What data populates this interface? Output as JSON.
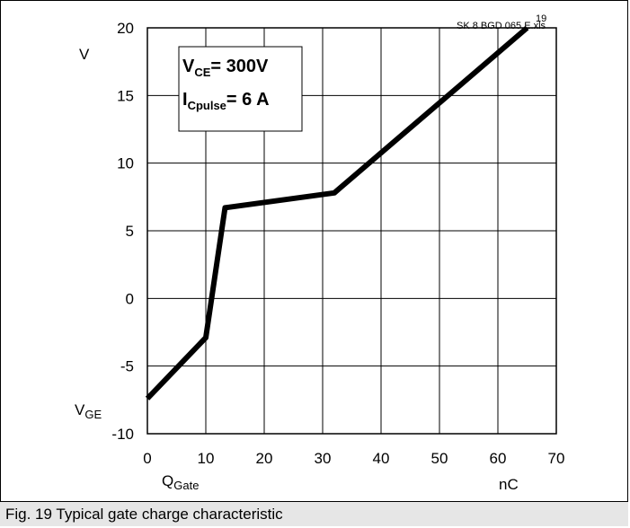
{
  "chart_data": {
    "type": "line",
    "x_min": 0,
    "x_max": 70,
    "y_min": -10,
    "y_max": 20,
    "x_ticks": [
      0,
      10,
      20,
      30,
      40,
      50,
      60,
      70
    ],
    "y_ticks": [
      -10,
      -5,
      0,
      5,
      10,
      15,
      20
    ],
    "x_tick_labels": [
      "0",
      "10",
      "20",
      "30",
      "40",
      "50",
      "60",
      "70"
    ],
    "y_tick_labels": [
      "-10",
      "-5",
      "0",
      "5",
      "10",
      "15",
      "20"
    ],
    "grid": true,
    "x_label": {
      "main": "Q",
      "sub": "Gate"
    },
    "x_unit": "nC",
    "y_label": {
      "main": "V",
      "sub": "GE"
    },
    "y_unit": "V",
    "series": [
      {
        "x": [
          0,
          10,
          13.3,
          32,
          65
        ],
        "y": [
          -7.4,
          -2.9,
          6.7,
          7.8,
          20
        ]
      }
    ],
    "annotation_file": "SK 8 BGD 065 E.xls",
    "annotation_num": "19",
    "conditions": [
      {
        "main": "V",
        "sub": "CE",
        "value": "= 300V"
      },
      {
        "main": "I",
        "sub": "Cpulse",
        "value": "= 6 A"
      }
    ],
    "line_color": "#000000"
  },
  "caption": "Fig. 19 Typical gate charge characteristic"
}
